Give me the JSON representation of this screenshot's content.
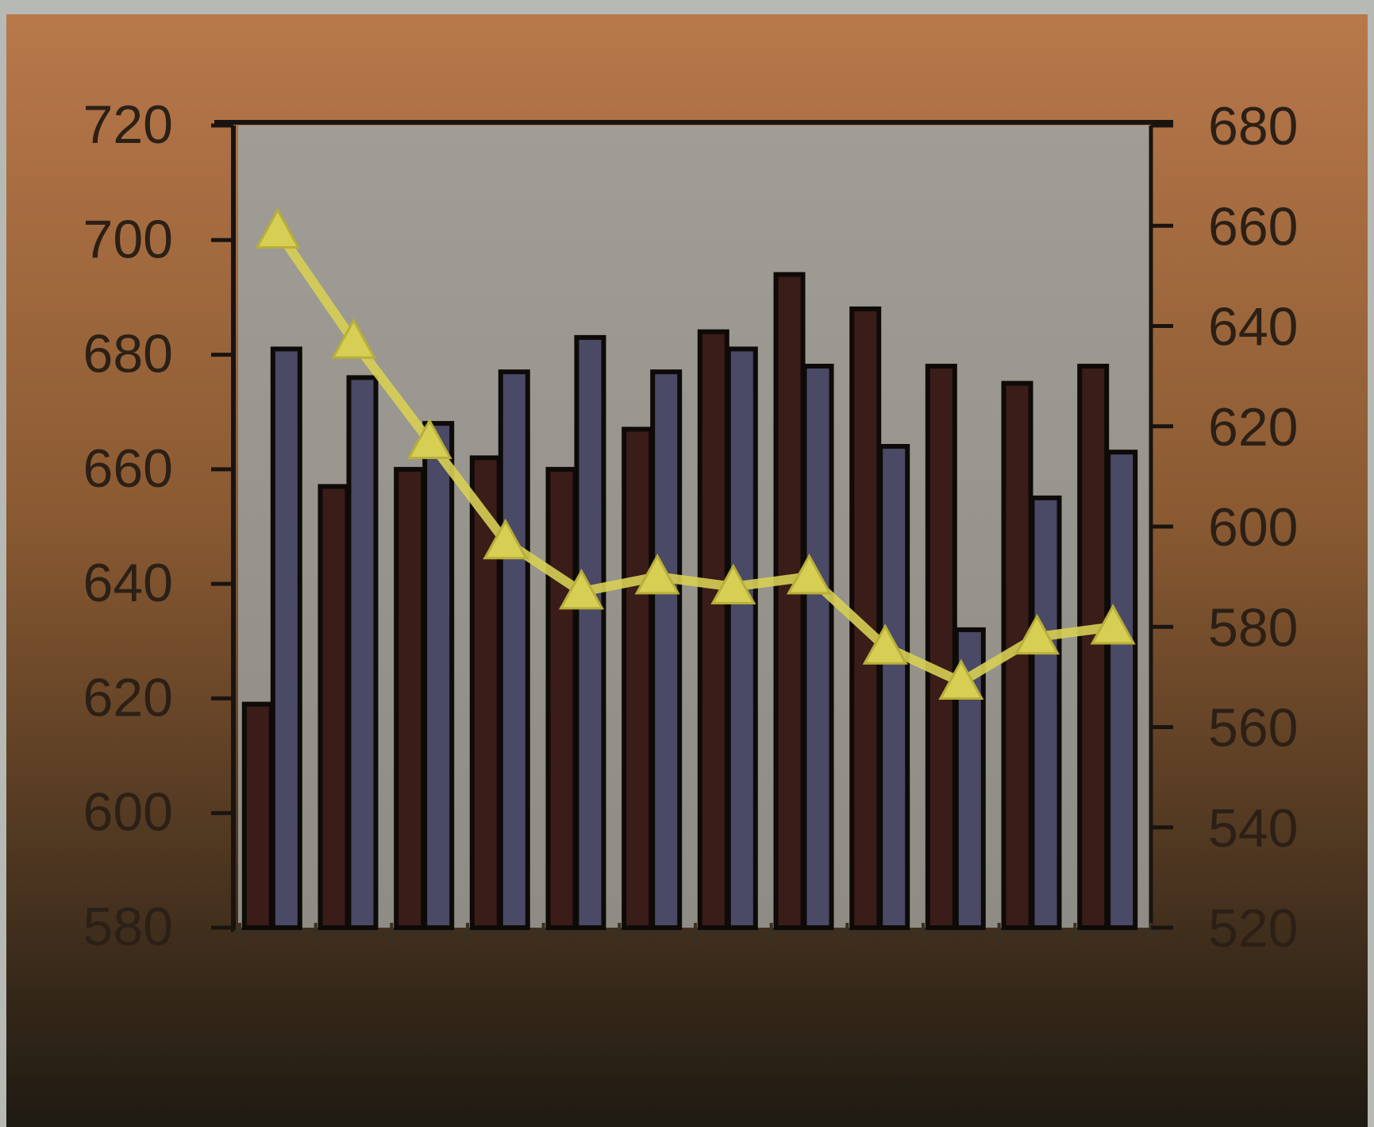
{
  "colors": {
    "frame_top": "#b8784a",
    "frame_mid": "#8a5a32",
    "frame_bottom": "#1e1a12",
    "plot_bg": "#9a9890",
    "bar_series_1": "#3a1c18",
    "bar_series_2": "#4a4a66",
    "bar_outline": "#0e0a08",
    "line_series": "#d7cf54",
    "axis": "#1a1410",
    "tick_label": "#2c2016"
  },
  "chart_data": {
    "type": "bar",
    "title": "",
    "xlabel": "",
    "ylabel": "",
    "y2label": "",
    "grid": false,
    "legend": "none",
    "categories": [
      "",
      "",
      "",
      "",
      "",
      "",
      "",
      "",
      "",
      "",
      "",
      ""
    ],
    "ylim": [
      580,
      720
    ],
    "y_ticks": [
      "720",
      "700",
      "680",
      "660",
      "640",
      "620",
      "600",
      "580"
    ],
    "y2lim": [
      520,
      680
    ],
    "y2_ticks": [
      "680",
      "660",
      "640",
      "620",
      "600",
      "580",
      "560",
      "540",
      "520"
    ],
    "series": [
      {
        "axis": "left",
        "kind": "bar",
        "values": [
          619,
          657,
          660,
          662,
          660,
          667,
          684,
          694,
          688,
          678,
          675,
          678
        ]
      },
      {
        "axis": "left",
        "kind": "bar",
        "values": [
          681,
          676,
          668,
          677,
          683,
          677,
          681,
          678,
          664,
          632,
          655,
          663
        ]
      },
      {
        "axis": "right",
        "kind": "line",
        "marker": "triangle",
        "values": [
          659,
          637,
          617,
          597,
          587,
          590,
          588,
          590,
          576,
          569,
          578,
          580
        ]
      }
    ]
  }
}
